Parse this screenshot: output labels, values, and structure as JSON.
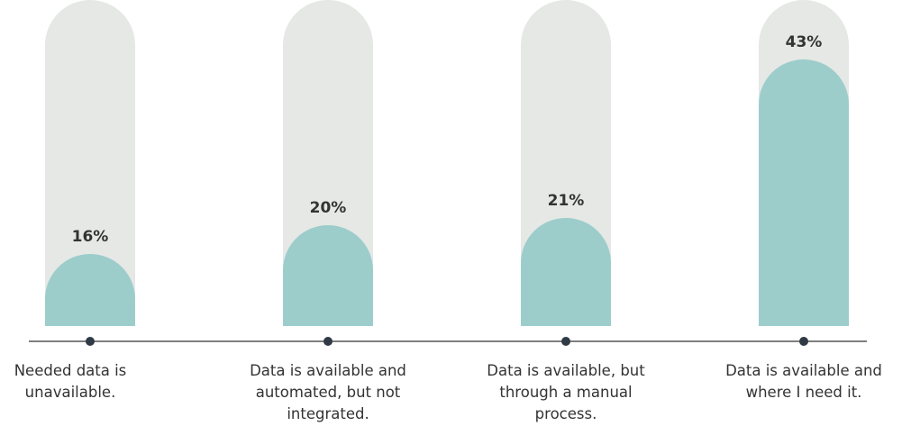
{
  "chart_data": {
    "type": "bar",
    "categories": [
      "Needed data is unavailable.",
      "Data is available and automated, but not integrated.",
      "Data is available, but through a manual process.",
      "Data is available and where I need it."
    ],
    "values": [
      16,
      20,
      21,
      43
    ],
    "value_labels": [
      "16%",
      "20%",
      "21%",
      "43%"
    ],
    "color": "#9ccdcb",
    "ylim": [
      6,
      51.25
    ]
  }
}
